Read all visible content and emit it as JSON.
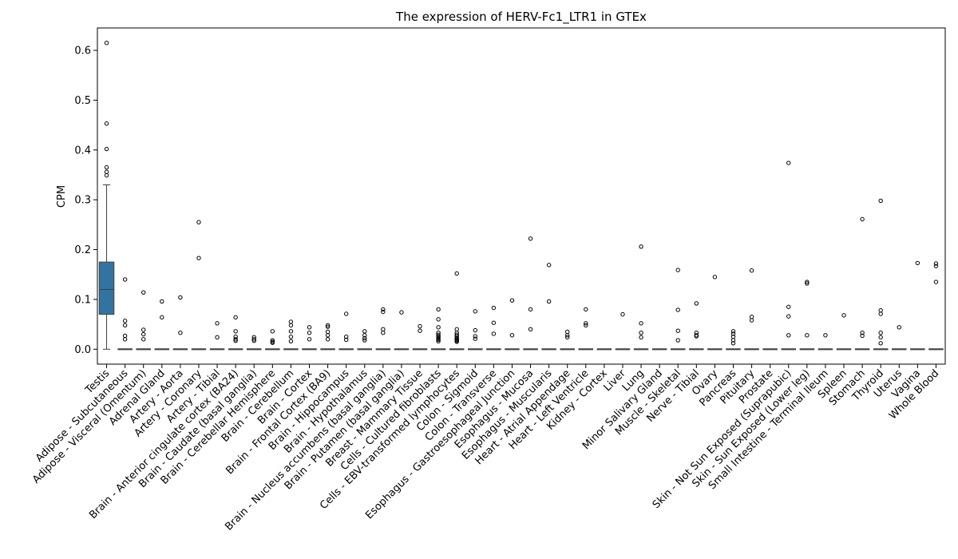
{
  "chart_data": {
    "type": "box",
    "title": "The expression of HERV-Fc1_LTR1 in GTEx",
    "xlabel": "",
    "ylabel": "CPM",
    "ylim": [
      -0.03,
      0.645
    ],
    "yticks": [
      "0.0",
      "0.1",
      "0.2",
      "0.3",
      "0.4",
      "0.5",
      "0.6"
    ],
    "box_color": "#3274a1",
    "categories": [
      "Testis",
      "Adipose - Subcutaneous",
      "Adipose - Visceral (Omentum)",
      "Adrenal Gland",
      "Artery - Aorta",
      "Artery - Coronary",
      "Artery - Tibial",
      "Brain - Anterior cingulate cortex (BA24)",
      "Brain - Caudate (basal ganglia)",
      "Brain - Cerebellar Hemisphere",
      "Brain - Cerebellum",
      "Brain - Cortex",
      "Brain - Frontal Cortex (BA9)",
      "Brain - Hippocampus",
      "Brain - Hypothalamus",
      "Brain - Nucleus accumbens (basal ganglia)",
      "Brain - Putamen (basal ganglia)",
      "Breast - Mammary Tissue",
      "Cells - Cultured fibroblasts",
      "Cells - EBV-transformed lymphocytes",
      "Colon - Sigmoid",
      "Colon - Transverse",
      "Esophagus - Gastroesophageal Junction",
      "Esophagus - Mucosa",
      "Esophagus - Muscularis",
      "Heart - Atrial Appendage",
      "Heart - Left Ventricle",
      "Kidney - Cortex",
      "Liver",
      "Lung",
      "Minor Salivary Gland",
      "Muscle - Skeletal",
      "Nerve - Tibial",
      "Ovary",
      "Pancreas",
      "Pituitary",
      "Prostate",
      "Skin - Not Sun Exposed (Suprapubic)",
      "Skin - Sun Exposed (Lower leg)",
      "Small Intestine - Terminal Ileum",
      "Spleen",
      "Stomach",
      "Thyroid",
      "Uterus",
      "Vagina",
      "Whole Blood"
    ],
    "boxes": [
      {
        "q1": 0.07,
        "median": 0.12,
        "q3": 0.175,
        "whislo": 0.0,
        "whishi": 0.33
      },
      {
        "q1": 0,
        "median": 0,
        "q3": 0,
        "whislo": 0,
        "whishi": 0
      },
      {
        "q1": 0,
        "median": 0,
        "q3": 0,
        "whislo": 0,
        "whishi": 0
      },
      {
        "q1": 0,
        "median": 0,
        "q3": 0,
        "whislo": 0,
        "whishi": 0
      },
      {
        "q1": 0,
        "median": 0,
        "q3": 0,
        "whislo": 0,
        "whishi": 0
      },
      {
        "q1": 0,
        "median": 0,
        "q3": 0,
        "whislo": 0,
        "whishi": 0
      },
      {
        "q1": 0,
        "median": 0,
        "q3": 0,
        "whislo": 0,
        "whishi": 0
      },
      {
        "q1": 0,
        "median": 0,
        "q3": 0,
        "whislo": 0,
        "whishi": 0
      },
      {
        "q1": 0,
        "median": 0,
        "q3": 0,
        "whislo": 0,
        "whishi": 0
      },
      {
        "q1": 0,
        "median": 0,
        "q3": 0,
        "whislo": 0,
        "whishi": 0
      },
      {
        "q1": 0,
        "median": 0,
        "q3": 0,
        "whislo": 0,
        "whishi": 0
      },
      {
        "q1": 0,
        "median": 0,
        "q3": 0,
        "whislo": 0,
        "whishi": 0
      },
      {
        "q1": 0,
        "median": 0,
        "q3": 0,
        "whislo": 0,
        "whishi": 0
      },
      {
        "q1": 0,
        "median": 0,
        "q3": 0,
        "whislo": 0,
        "whishi": 0
      },
      {
        "q1": 0,
        "median": 0,
        "q3": 0,
        "whislo": 0,
        "whishi": 0
      },
      {
        "q1": 0,
        "median": 0,
        "q3": 0,
        "whislo": 0,
        "whishi": 0
      },
      {
        "q1": 0,
        "median": 0,
        "q3": 0,
        "whislo": 0,
        "whishi": 0
      },
      {
        "q1": 0,
        "median": 0,
        "q3": 0,
        "whislo": 0,
        "whishi": 0
      },
      {
        "q1": 0,
        "median": 0,
        "q3": 0,
        "whislo": 0,
        "whishi": 0
      },
      {
        "q1": 0,
        "median": 0,
        "q3": 0,
        "whislo": 0,
        "whishi": 0
      },
      {
        "q1": 0,
        "median": 0,
        "q3": 0,
        "whislo": 0,
        "whishi": 0
      },
      {
        "q1": 0,
        "median": 0,
        "q3": 0,
        "whislo": 0,
        "whishi": 0
      },
      {
        "q1": 0,
        "median": 0,
        "q3": 0,
        "whislo": 0,
        "whishi": 0
      },
      {
        "q1": 0,
        "median": 0,
        "q3": 0,
        "whislo": 0,
        "whishi": 0
      },
      {
        "q1": 0,
        "median": 0,
        "q3": 0,
        "whislo": 0,
        "whishi": 0
      },
      {
        "q1": 0,
        "median": 0,
        "q3": 0,
        "whislo": 0,
        "whishi": 0
      },
      {
        "q1": 0,
        "median": 0,
        "q3": 0,
        "whislo": 0,
        "whishi": 0
      },
      {
        "q1": 0,
        "median": 0,
        "q3": 0,
        "whislo": 0,
        "whishi": 0
      },
      {
        "q1": 0,
        "median": 0,
        "q3": 0,
        "whislo": 0,
        "whishi": 0
      },
      {
        "q1": 0,
        "median": 0,
        "q3": 0,
        "whislo": 0,
        "whishi": 0
      },
      {
        "q1": 0,
        "median": 0,
        "q3": 0,
        "whislo": 0,
        "whishi": 0
      },
      {
        "q1": 0,
        "median": 0,
        "q3": 0,
        "whislo": 0,
        "whishi": 0
      },
      {
        "q1": 0,
        "median": 0,
        "q3": 0,
        "whislo": 0,
        "whishi": 0
      },
      {
        "q1": 0,
        "median": 0,
        "q3": 0,
        "whislo": 0,
        "whishi": 0
      },
      {
        "q1": 0,
        "median": 0,
        "q3": 0,
        "whislo": 0,
        "whishi": 0
      },
      {
        "q1": 0,
        "median": 0,
        "q3": 0,
        "whislo": 0,
        "whishi": 0
      },
      {
        "q1": 0,
        "median": 0,
        "q3": 0,
        "whislo": 0,
        "whishi": 0
      },
      {
        "q1": 0,
        "median": 0,
        "q3": 0,
        "whislo": 0,
        "whishi": 0
      },
      {
        "q1": 0,
        "median": 0,
        "q3": 0,
        "whislo": 0,
        "whishi": 0
      },
      {
        "q1": 0,
        "median": 0,
        "q3": 0,
        "whislo": 0,
        "whishi": 0
      },
      {
        "q1": 0,
        "median": 0,
        "q3": 0,
        "whislo": 0,
        "whishi": 0
      },
      {
        "q1": 0,
        "median": 0,
        "q3": 0,
        "whislo": 0,
        "whishi": 0
      },
      {
        "q1": 0,
        "median": 0,
        "q3": 0,
        "whislo": 0,
        "whishi": 0
      },
      {
        "q1": 0,
        "median": 0,
        "q3": 0,
        "whislo": 0,
        "whishi": 0
      },
      {
        "q1": 0,
        "median": 0,
        "q3": 0,
        "whislo": 0,
        "whishi": 0
      },
      {
        "q1": 0,
        "median": 0,
        "q3": 0,
        "whislo": 0,
        "whishi": 0
      }
    ],
    "outliers": [
      [
        0.615,
        0.453,
        0.402,
        0.365,
        0.356,
        0.349
      ],
      [
        0.14,
        0.057,
        0.048,
        0.027,
        0.02
      ],
      [
        0.114,
        0.039,
        0.03,
        0.02
      ],
      [
        0.096,
        0.064
      ],
      [
        0.104,
        0.033
      ],
      [
        0.255,
        0.183
      ],
      [
        0.052,
        0.024
      ],
      [
        0.064,
        0.036,
        0.025,
        0.02,
        0.017
      ],
      [
        0.024,
        0.02,
        0.017
      ],
      [
        0.036,
        0.018,
        0.015,
        0.013
      ],
      [
        0.055,
        0.048,
        0.036,
        0.025,
        0.016
      ],
      [
        0.044,
        0.033,
        0.02
      ],
      [
        0.048,
        0.045,
        0.035,
        0.028,
        0.02
      ],
      [
        0.071,
        0.025,
        0.019
      ],
      [
        0.036,
        0.028,
        0.022,
        0.018
      ],
      [
        0.08,
        0.075,
        0.04,
        0.033
      ],
      [
        0.074
      ],
      [
        0.046,
        0.037
      ],
      [
        0.08,
        0.06,
        0.044,
        0.033,
        0.029,
        0.026,
        0.024,
        0.021,
        0.019,
        0.016
      ],
      [
        0.152,
        0.04,
        0.033,
        0.029,
        0.026,
        0.023,
        0.021,
        0.019,
        0.017,
        0.015
      ],
      [
        0.076,
        0.038,
        0.026,
        0.021
      ],
      [
        0.083,
        0.053,
        0.031
      ],
      [
        0.098,
        0.028
      ],
      [
        0.222,
        0.08,
        0.04
      ],
      [
        0.169,
        0.096
      ],
      [
        0.035,
        0.028,
        0.024
      ],
      [
        0.08,
        0.052,
        0.048
      ],
      [],
      [
        0.07
      ],
      [
        0.206,
        0.052,
        0.033,
        0.024
      ],
      [],
      [
        0.159,
        0.079,
        0.037,
        0.018
      ],
      [
        0.092,
        0.033,
        0.028,
        0.026
      ],
      [
        0.145
      ],
      [
        0.036,
        0.031,
        0.025,
        0.018,
        0.012
      ],
      [
        0.158,
        0.065,
        0.058
      ],
      [],
      [
        0.374,
        0.085,
        0.066,
        0.028
      ],
      [
        0.135,
        0.132,
        0.028
      ],
      [
        0.028
      ],
      [
        0.068
      ],
      [
        0.261,
        0.033,
        0.027
      ],
      [
        0.298,
        0.078,
        0.071,
        0.033,
        0.024,
        0.012
      ],
      [
        0.044
      ],
      [
        0.173
      ],
      [
        0.172,
        0.167,
        0.135
      ]
    ]
  }
}
